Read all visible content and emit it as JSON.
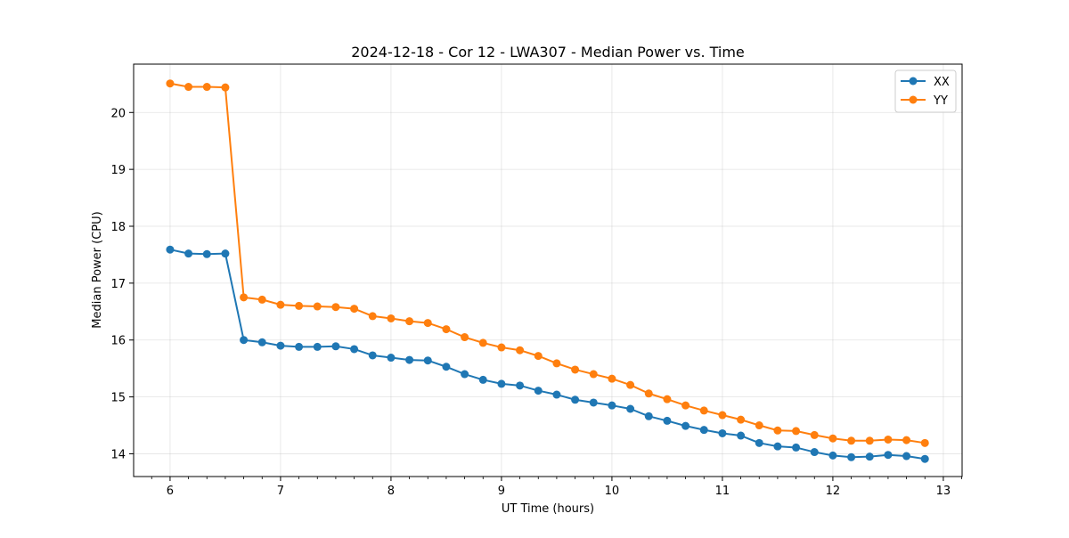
{
  "chart_data": {
    "type": "line",
    "title": "2024-12-18 - Cor 12 - LWA307 - Median Power vs. Time",
    "xlabel": "UT Time (hours)",
    "ylabel": "Median Power (CPU)",
    "xlim": [
      5.67,
      13.17
    ],
    "ylim": [
      13.6,
      20.85
    ],
    "xticks": [
      6,
      7,
      8,
      9,
      10,
      11,
      12,
      13
    ],
    "yticks": [
      14,
      15,
      16,
      17,
      18,
      19,
      20
    ],
    "grid": true,
    "legend_position": "top-right",
    "x": [
      6.0,
      6.1667,
      6.3333,
      6.5,
      6.6667,
      6.8333,
      7.0,
      7.1667,
      7.3333,
      7.5,
      7.6667,
      7.8333,
      8.0,
      8.1667,
      8.3333,
      8.5,
      8.6667,
      8.8333,
      9.0,
      9.1667,
      9.3333,
      9.5,
      9.6667,
      9.8333,
      10.0,
      10.1667,
      10.3333,
      10.5,
      10.6667,
      10.8333,
      11.0,
      11.1667,
      11.3333,
      11.5,
      11.6667,
      11.8333,
      12.0,
      12.1667,
      12.3333,
      12.5,
      12.6667,
      12.8333
    ],
    "series": [
      {
        "name": "XX",
        "color": "#1f77b4",
        "values": [
          17.59,
          17.52,
          17.51,
          17.52,
          16.0,
          15.96,
          15.9,
          15.88,
          15.88,
          15.89,
          15.84,
          15.73,
          15.69,
          15.65,
          15.64,
          15.53,
          15.4,
          15.3,
          15.23,
          15.2,
          15.11,
          15.04,
          14.95,
          14.9,
          14.85,
          14.79,
          14.66,
          14.58,
          14.49,
          14.42,
          14.36,
          14.32,
          14.19,
          14.13,
          14.11,
          14.03,
          13.97,
          13.94,
          13.95,
          13.98,
          13.96,
          13.91
        ]
      },
      {
        "name": "YY",
        "color": "#ff7f0e",
        "values": [
          20.51,
          20.45,
          20.45,
          20.44,
          16.75,
          16.71,
          16.62,
          16.6,
          16.59,
          16.58,
          16.55,
          16.42,
          16.38,
          16.33,
          16.3,
          16.19,
          16.05,
          15.95,
          15.87,
          15.82,
          15.72,
          15.59,
          15.48,
          15.4,
          15.32,
          15.21,
          15.06,
          14.96,
          14.85,
          14.76,
          14.68,
          14.6,
          14.5,
          14.41,
          14.4,
          14.33,
          14.27,
          14.23,
          14.23,
          14.25,
          14.24,
          14.19
        ]
      }
    ]
  }
}
